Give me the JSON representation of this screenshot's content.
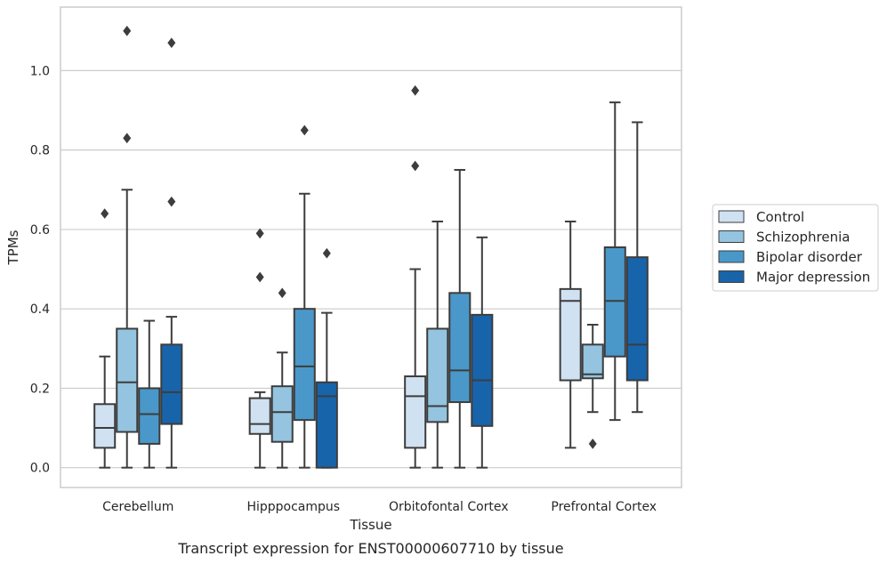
{
  "chart_data": {
    "type": "box",
    "xlabel": "Tissue",
    "ylabel": "TPMs",
    "caption": "Transcript expression for ENST00000607710 by tissue",
    "ylim": [
      -0.05,
      1.16
    ],
    "yticks": [
      "0.0",
      "0.2",
      "0.4",
      "0.6",
      "0.8",
      "1.0"
    ],
    "ytick_values": [
      0.0,
      0.2,
      0.4,
      0.6,
      0.8,
      1.0
    ],
    "grid": "horizontal",
    "legend_position": "right",
    "categories": [
      "Cerebellum",
      "Hipppocampus",
      "Orbitofontal Cortex",
      "Prefrontal Cortex"
    ],
    "series": [
      {
        "name": "Control",
        "color": "#d0e1f2",
        "boxes": [
          {
            "whisker_low": 0.0,
            "q1": 0.05,
            "median": 0.1,
            "q3": 0.16,
            "whisker_high": 0.28,
            "outliers": [
              0.64
            ]
          },
          {
            "whisker_low": 0.0,
            "q1": 0.085,
            "median": 0.11,
            "q3": 0.175,
            "whisker_high": 0.19,
            "outliers": [
              0.48,
              0.59
            ]
          },
          {
            "whisker_low": 0.0,
            "q1": 0.05,
            "median": 0.18,
            "q3": 0.23,
            "whisker_high": 0.5,
            "outliers": [
              0.76,
              0.95
            ]
          },
          {
            "whisker_low": 0.05,
            "q1": 0.22,
            "median": 0.42,
            "q3": 0.45,
            "whisker_high": 0.62,
            "outliers": []
          }
        ]
      },
      {
        "name": "Schizophrenia",
        "color": "#94c4df",
        "boxes": [
          {
            "whisker_low": 0.0,
            "q1": 0.09,
            "median": 0.215,
            "q3": 0.35,
            "whisker_high": 0.7,
            "outliers": [
              0.83,
              1.1
            ]
          },
          {
            "whisker_low": 0.0,
            "q1": 0.065,
            "median": 0.14,
            "q3": 0.205,
            "whisker_high": 0.29,
            "outliers": [
              0.44
            ]
          },
          {
            "whisker_low": 0.0,
            "q1": 0.115,
            "median": 0.155,
            "q3": 0.35,
            "whisker_high": 0.62,
            "outliers": []
          },
          {
            "whisker_low": 0.14,
            "q1": 0.225,
            "median": 0.235,
            "q3": 0.31,
            "whisker_high": 0.36,
            "outliers": [
              0.06
            ]
          }
        ]
      },
      {
        "name": "Bipolar disorder",
        "color": "#4a98c9",
        "boxes": [
          {
            "whisker_low": 0.0,
            "q1": 0.06,
            "median": 0.135,
            "q3": 0.2,
            "whisker_high": 0.37,
            "outliers": []
          },
          {
            "whisker_low": 0.0,
            "q1": 0.12,
            "median": 0.255,
            "q3": 0.4,
            "whisker_high": 0.69,
            "outliers": [
              0.85
            ]
          },
          {
            "whisker_low": 0.0,
            "q1": 0.165,
            "median": 0.245,
            "q3": 0.44,
            "whisker_high": 0.75,
            "outliers": []
          },
          {
            "whisker_low": 0.12,
            "q1": 0.28,
            "median": 0.42,
            "q3": 0.555,
            "whisker_high": 0.92,
            "outliers": []
          }
        ]
      },
      {
        "name": "Major depression",
        "color": "#1764ab",
        "boxes": [
          {
            "whisker_low": 0.0,
            "q1": 0.11,
            "median": 0.19,
            "q3": 0.31,
            "whisker_high": 0.38,
            "outliers": [
              0.67,
              1.07
            ]
          },
          {
            "whisker_low": 0.0,
            "q1": 0.0,
            "median": 0.18,
            "q3": 0.215,
            "whisker_high": 0.39,
            "outliers": [
              0.54
            ]
          },
          {
            "whisker_low": 0.0,
            "q1": 0.105,
            "median": 0.22,
            "q3": 0.385,
            "whisker_high": 0.58,
            "outliers": []
          },
          {
            "whisker_low": 0.14,
            "q1": 0.22,
            "median": 0.31,
            "q3": 0.53,
            "whisker_high": 0.87,
            "outliers": []
          }
        ]
      }
    ]
  }
}
